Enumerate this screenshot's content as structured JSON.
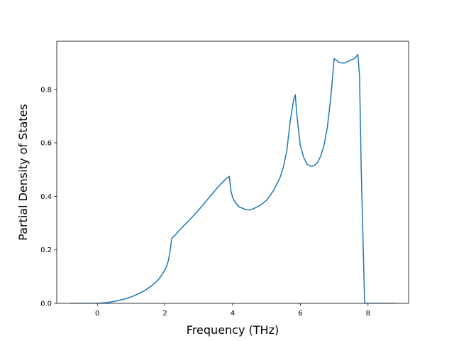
{
  "chart_data": {
    "type": "line",
    "title": "",
    "xlabel": "Frequency (THz)",
    "ylabel": "Partial Density of States",
    "xlim": [
      -1.2,
      9.2
    ],
    "ylim": [
      0.0,
      0.98
    ],
    "xticks": [
      0,
      2,
      4,
      6,
      8
    ],
    "xtick_labels": [
      "0",
      "2",
      "4",
      "6",
      "8"
    ],
    "yticks": [
      0.0,
      0.2,
      0.4,
      0.6,
      0.8
    ],
    "ytick_labels": [
      "0.0",
      "0.2",
      "0.4",
      "0.6",
      "0.8"
    ],
    "grid": false,
    "legend": "none",
    "series": [
      {
        "color": "#1f77b4",
        "x": [
          -0.8,
          -0.4,
          0.0,
          0.2,
          0.4,
          0.6,
          0.8,
          1.0,
          1.2,
          1.4,
          1.6,
          1.8,
          1.9,
          2.0,
          2.05,
          2.1,
          2.15,
          2.2,
          2.3,
          2.4,
          2.6,
          2.8,
          3.0,
          3.2,
          3.4,
          3.6,
          3.8,
          3.9,
          3.95,
          4.0,
          4.1,
          4.2,
          4.4,
          4.5,
          4.6,
          4.8,
          5.0,
          5.2,
          5.4,
          5.5,
          5.6,
          5.7,
          5.8,
          5.85,
          5.9,
          6.0,
          6.1,
          6.2,
          6.3,
          6.4,
          6.5,
          6.6,
          6.7,
          6.8,
          6.9,
          7.0,
          7.05,
          7.1,
          7.15,
          7.3,
          7.5,
          7.6,
          7.7,
          7.75,
          7.8,
          7.85,
          7.9,
          7.95,
          8.0,
          8.4,
          8.8
        ],
        "y": [
          0.0,
          0.0,
          0.0,
          0.002,
          0.005,
          0.01,
          0.016,
          0.024,
          0.035,
          0.048,
          0.065,
          0.088,
          0.105,
          0.125,
          0.14,
          0.16,
          0.195,
          0.243,
          0.255,
          0.27,
          0.296,
          0.322,
          0.35,
          0.38,
          0.41,
          0.44,
          0.465,
          0.475,
          0.42,
          0.395,
          0.373,
          0.36,
          0.35,
          0.349,
          0.353,
          0.365,
          0.385,
          0.42,
          0.47,
          0.51,
          0.57,
          0.68,
          0.76,
          0.78,
          0.7,
          0.59,
          0.545,
          0.52,
          0.513,
          0.514,
          0.525,
          0.55,
          0.59,
          0.66,
          0.77,
          0.915,
          0.91,
          0.905,
          0.9,
          0.898,
          0.91,
          0.915,
          0.93,
          0.85,
          0.5,
          0.25,
          0.0,
          0.0,
          0.0,
          0.0,
          0.0
        ]
      }
    ]
  }
}
